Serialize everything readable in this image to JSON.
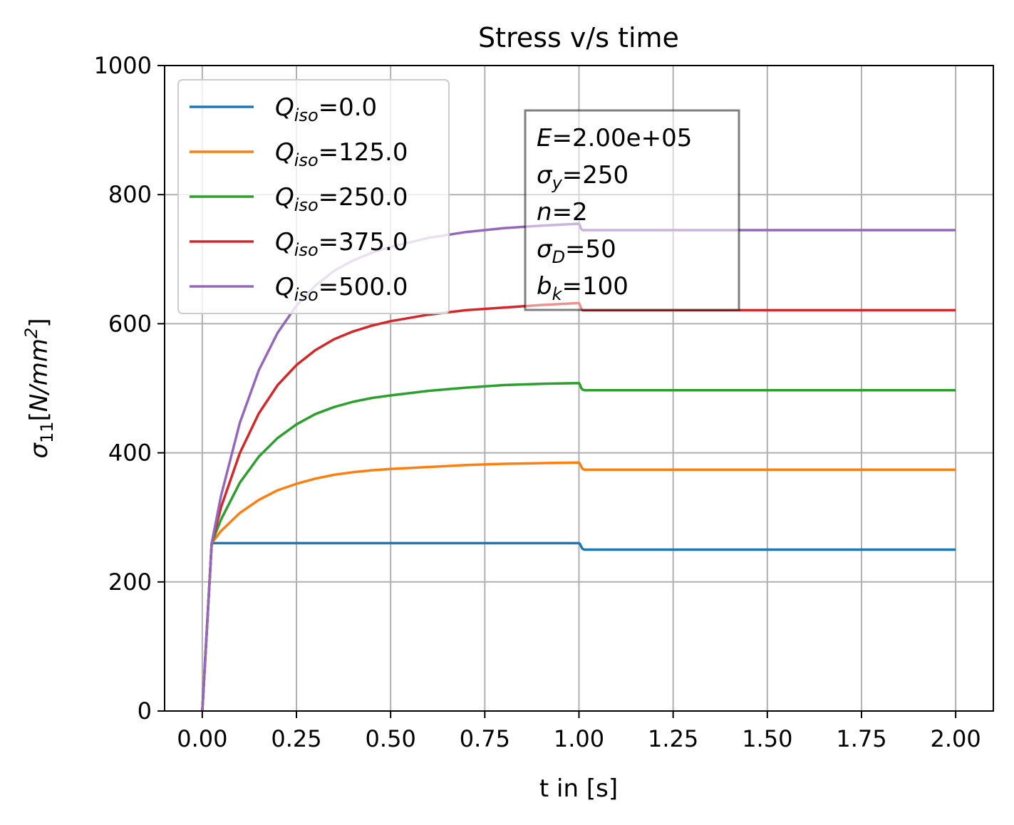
{
  "chart_data": {
    "type": "line",
    "title": "Stress v/s time",
    "xlabel": "t in [s]",
    "ylabel": {
      "symbol": "σ",
      "sub": "11",
      "unit_open": "[",
      "unit_var": "N/mm",
      "unit_sup": "2",
      "unit_close": "]"
    },
    "xlim": [
      -0.1,
      2.1
    ],
    "ylim": [
      0,
      1000
    ],
    "xticks": [
      0.0,
      0.25,
      0.5,
      0.75,
      1.0,
      1.25,
      1.5,
      1.75,
      2.0
    ],
    "xtick_labels": [
      "0.00",
      "0.25",
      "0.50",
      "0.75",
      "1.00",
      "1.25",
      "1.50",
      "1.75",
      "2.00"
    ],
    "yticks": [
      0,
      200,
      400,
      600,
      800,
      1000
    ],
    "ytick_labels": [
      "0",
      "200",
      "400",
      "600",
      "800",
      "1000"
    ],
    "grid": true,
    "legend_position": "top-left",
    "legend_var": "Q",
    "legend_sub": "iso",
    "annotation": [
      {
        "var": "E",
        "sub": "",
        "value": "=2.00e+05"
      },
      {
        "var": "σ",
        "sub": "y",
        "value": "=250"
      },
      {
        "var": "n",
        "sub": "",
        "value": "=2"
      },
      {
        "var": "σ",
        "sub": "D",
        "value": "=50"
      },
      {
        "var": "b",
        "sub": "k",
        "value": "=100"
      }
    ],
    "x": [
      0.0,
      0.0125,
      0.025,
      0.05,
      0.1,
      0.15,
      0.2,
      0.25,
      0.3,
      0.35,
      0.4,
      0.45,
      0.5,
      0.6,
      0.7,
      0.8,
      0.9,
      1.0,
      1.0025,
      1.005,
      1.0075,
      1.01,
      1.015,
      1.02,
      1.05,
      1.25,
      1.5,
      1.75,
      2.0
    ],
    "series": [
      {
        "name": "=0.0",
        "color": "#1f77b4",
        "values": [
          0,
          130,
          260,
          260,
          260,
          260,
          260,
          260,
          260,
          260,
          260,
          260,
          260,
          260,
          260,
          260,
          260,
          260,
          259,
          256,
          253,
          251,
          250,
          250,
          250,
          250,
          250,
          250,
          250
        ]
      },
      {
        "name": "=125.0",
        "color": "#ff7f0e",
        "values": [
          0,
          130,
          260,
          279,
          307,
          327,
          342,
          352,
          360,
          366,
          370,
          373,
          375,
          378,
          381,
          383,
          384,
          385,
          383,
          380,
          377,
          375,
          374,
          374,
          374,
          374,
          374,
          374,
          374
        ]
      },
      {
        "name": "=250.0",
        "color": "#2ca02c",
        "values": [
          0,
          130,
          260,
          297,
          354,
          394,
          423,
          444,
          460,
          471,
          479,
          485,
          489,
          496,
          501,
          505,
          507,
          508,
          506,
          502,
          499,
          498,
          497,
          497,
          497,
          497,
          497,
          497,
          497
        ]
      },
      {
        "name": "=375.0",
        "color": "#d62728",
        "values": [
          0,
          130,
          260,
          316,
          400,
          461,
          505,
          536,
          559,
          576,
          588,
          597,
          604,
          614,
          621,
          625,
          629,
          632,
          629,
          625,
          622,
          621,
          621,
          621,
          621,
          621,
          621,
          621,
          621
        ]
      },
      {
        "name": "=500.0",
        "color": "#9467bd",
        "values": [
          0,
          130,
          260,
          334,
          447,
          528,
          586,
          628,
          659,
          682,
          698,
          710,
          719,
          733,
          742,
          748,
          752,
          755,
          752,
          748,
          746,
          745,
          745,
          745,
          745,
          745,
          745,
          745,
          745
        ]
      }
    ]
  }
}
